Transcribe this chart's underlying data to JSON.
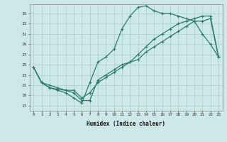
{
  "title": "",
  "xlabel": "Humidex (Indice chaleur)",
  "bg_color": "#cce8e8",
  "line_color": "#2d7b6e",
  "grid_color": "#b0d4d4",
  "xlim": [
    -0.5,
    23.5
  ],
  "ylim": [
    16,
    36.8
  ],
  "yticks": [
    17,
    19,
    21,
    23,
    25,
    27,
    29,
    31,
    33,
    35
  ],
  "xticks": [
    0,
    1,
    2,
    3,
    4,
    5,
    6,
    7,
    8,
    9,
    10,
    11,
    12,
    13,
    14,
    15,
    16,
    17,
    18,
    19,
    20,
    21,
    22,
    23
  ],
  "line1_x": [
    0,
    1,
    2,
    3,
    4,
    5,
    6,
    7,
    8,
    9,
    10,
    11,
    12,
    13,
    14,
    15,
    16,
    17,
    18,
    19,
    20,
    21,
    22,
    23
  ],
  "line1_y": [
    24.5,
    21.5,
    20.5,
    20.0,
    19.5,
    18.5,
    17.5,
    21.5,
    25.5,
    26.5,
    28.0,
    32.0,
    34.5,
    36.2,
    36.5,
    35.5,
    35.0,
    35.0,
    34.5,
    34.0,
    33.5,
    31.0,
    29.0,
    26.5
  ],
  "line2_x": [
    0,
    1,
    2,
    3,
    4,
    5,
    6,
    7,
    8,
    9,
    10,
    11,
    12,
    13,
    14,
    15,
    16,
    17,
    18,
    19,
    20,
    21,
    22,
    23
  ],
  "line2_y": [
    24.5,
    21.5,
    20.5,
    20.2,
    20.0,
    20.0,
    18.5,
    19.5,
    21.5,
    22.5,
    23.5,
    24.5,
    25.5,
    27.0,
    28.5,
    30.0,
    31.0,
    32.0,
    33.0,
    33.5,
    34.0,
    34.5,
    34.5,
    26.5
  ],
  "line3_x": [
    0,
    1,
    2,
    3,
    4,
    5,
    6,
    7,
    8,
    9,
    10,
    11,
    12,
    13,
    14,
    15,
    16,
    17,
    18,
    19,
    20,
    21,
    22,
    23
  ],
  "line3_y": [
    24.5,
    21.5,
    21.0,
    20.5,
    20.0,
    19.5,
    18.0,
    18.0,
    22.0,
    23.0,
    24.0,
    25.0,
    25.5,
    26.0,
    27.5,
    28.5,
    29.5,
    30.5,
    31.5,
    32.5,
    33.5,
    33.5,
    34.0,
    26.5
  ]
}
